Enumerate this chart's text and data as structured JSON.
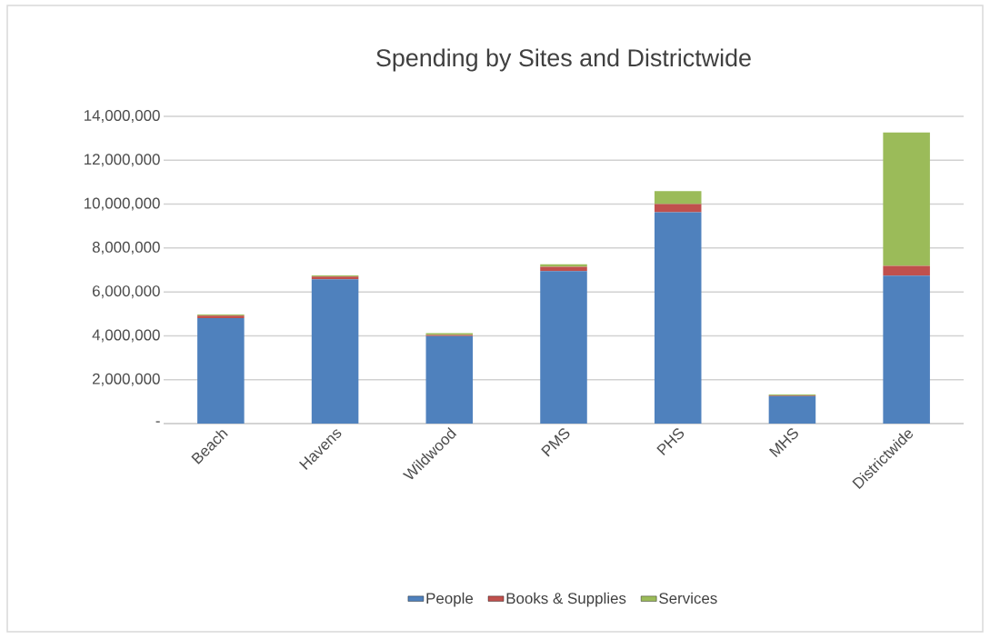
{
  "chart_data": {
    "type": "bar",
    "title": "Spending by Sites and Districtwide",
    "stacked": true,
    "categories": [
      "Beach",
      "Havens",
      "Wildwood",
      "PMS",
      "PHS",
      "MHS",
      "Districtwide"
    ],
    "series": [
      {
        "name": "People",
        "color": "#4f81bd",
        "values": [
          4800000,
          6580000,
          3990000,
          6950000,
          9630000,
          1250000,
          6740000
        ]
      },
      {
        "name": "Books & Supplies",
        "color": "#c0504d",
        "values": [
          120000,
          120000,
          50000,
          200000,
          370000,
          30000,
          450000
        ]
      },
      {
        "name": "Services",
        "color": "#9bbb59",
        "values": [
          50000,
          50000,
          80000,
          110000,
          590000,
          50000,
          6080000
        ]
      }
    ],
    "ylim": [
      0,
      14000000
    ],
    "yticks": [
      {
        "value": 0,
        "label": "-"
      },
      {
        "value": 2000000,
        "label": "2,000,000"
      },
      {
        "value": 4000000,
        "label": "4,000,000"
      },
      {
        "value": 6000000,
        "label": "6,000,000"
      },
      {
        "value": 8000000,
        "label": "8,000,000"
      },
      {
        "value": 10000000,
        "label": "10,000,000"
      },
      {
        "value": 12000000,
        "label": "12,000,000"
      },
      {
        "value": 14000000,
        "label": "14,000,000"
      }
    ],
    "grid": "y",
    "legend": "bottom"
  }
}
